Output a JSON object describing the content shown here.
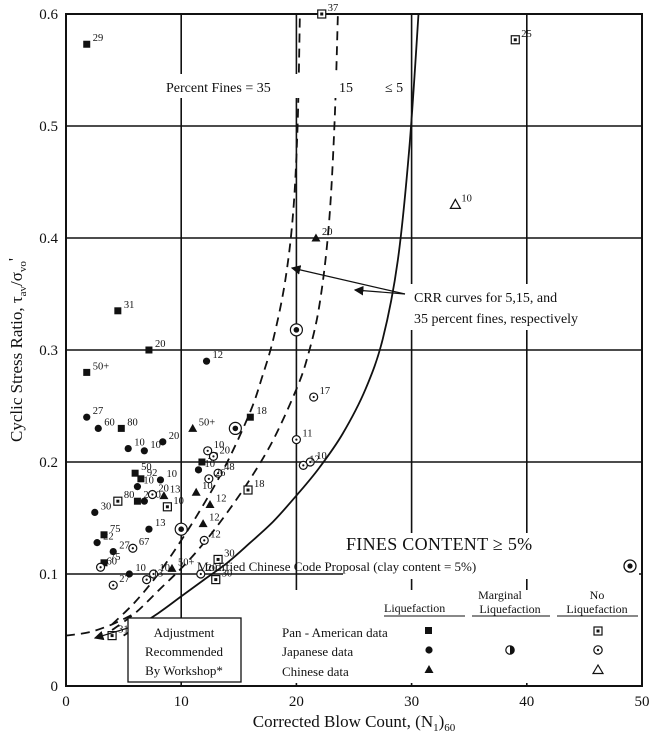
{
  "chart_data": {
    "type": "scatter",
    "title": "",
    "xlabel": "Corrected Blow Count, (N",
    "xlabel_sub1": "1",
    "xlabel_paren": ")",
    "xlabel_sub2": "60",
    "ylabel_main": "Cyclic Stress Ratio, τ",
    "ylabel_sub1": "av",
    "ylabel_slash": "/σ",
    "ylabel_sub2": "vo",
    "ylabel_prime": "'",
    "xlim": [
      0,
      50
    ],
    "ylim": [
      0,
      0.6
    ],
    "xticks": [
      "0",
      "10",
      "20",
      "30",
      "40",
      "50"
    ],
    "yticks": [
      "0",
      "0.1",
      "0.2",
      "0.3",
      "0.4",
      "0.5",
      "0.6"
    ],
    "grid": true,
    "curve_labels": {
      "prefix": "Percent Fines = 35",
      "fifteen": "15",
      "five": "≤ 5"
    },
    "crr_note_line1": "CRR curves for 5,15, and",
    "crr_note_line2": "35 percent fines, respectively",
    "fines_content": "FINES CONTENT ≥ 5%",
    "chinese_code": "Modified Chinese Code Proposal (clay content = 5%)",
    "adjustment_line1": "Adjustment",
    "adjustment_line2": "Recommended",
    "adjustment_line3": "By Workshop*",
    "legend_cols": {
      "liq": "Liquefaction",
      "marg1": "Marginal",
      "marg2": "Liquefaction",
      "noliq1": "No",
      "noliq2": "Liquefaction"
    },
    "legend_rows": [
      "Pan - American data",
      "Japanese data",
      "Chinese data"
    ],
    "curves": [
      {
        "name": "35",
        "x": [
          4,
          6,
          8,
          10,
          12,
          14,
          16,
          17,
          18,
          19,
          19.7,
          20.1,
          20.3
        ],
        "y": [
          0.055,
          0.075,
          0.1,
          0.13,
          0.163,
          0.2,
          0.245,
          0.275,
          0.31,
          0.36,
          0.42,
          0.5,
          0.6
        ]
      },
      {
        "name": "15",
        "x": [
          4,
          6,
          8,
          10,
          12,
          14,
          16,
          18,
          20,
          21,
          22,
          22.8,
          23.3,
          23.6
        ],
        "y": [
          0.05,
          0.065,
          0.085,
          0.105,
          0.128,
          0.155,
          0.185,
          0.22,
          0.265,
          0.295,
          0.34,
          0.41,
          0.5,
          0.6
        ]
      },
      {
        "name": "5",
        "x": [
          5,
          8,
          10,
          12,
          14,
          16,
          18,
          20,
          22,
          24,
          26,
          27.5,
          28.8,
          29.8,
          30.6
        ],
        "y": [
          0.045,
          0.065,
          0.08,
          0.095,
          0.11,
          0.128,
          0.147,
          0.17,
          0.195,
          0.225,
          0.265,
          0.31,
          0.38,
          0.48,
          0.6
        ]
      },
      {
        "name": "adjustment",
        "x": [
          0,
          2,
          4,
          6
        ],
        "y": [
          0.045,
          0.048,
          0.055,
          0.065
        ]
      }
    ],
    "series": [
      {
        "name": "Pan - American data",
        "status": "Liquefaction",
        "marker": "square-filled",
        "points": [
          {
            "x": 1.8,
            "y": 0.573,
            "label": "29"
          },
          {
            "x": 4.5,
            "y": 0.335,
            "label": "31"
          },
          {
            "x": 7.2,
            "y": 0.3,
            "label": "20"
          },
          {
            "x": 1.8,
            "y": 0.28,
            "label": "50+"
          },
          {
            "x": 4.8,
            "y": 0.23,
            "label": "80"
          },
          {
            "x": 16.0,
            "y": 0.24,
            "label": "18"
          },
          {
            "x": 6.0,
            "y": 0.19,
            "label": "50"
          },
          {
            "x": 6.5,
            "y": 0.185,
            "label": "92"
          },
          {
            "x": 6.2,
            "y": 0.165,
            "label": "20"
          },
          {
            "x": 3.3,
            "y": 0.135,
            "label": "75"
          },
          {
            "x": 3.3,
            "y": 0.11,
            "label": "75"
          },
          {
            "x": 11.8,
            "y": 0.2,
            "label": "20"
          }
        ]
      },
      {
        "name": "Pan - American data",
        "status": "No Liquefaction",
        "marker": "square-open",
        "points": [
          {
            "x": 22.2,
            "y": 0.6,
            "label": "37"
          },
          {
            "x": 39.0,
            "y": 0.577,
            "label": "25"
          },
          {
            "x": 4.5,
            "y": 0.165,
            "label": "80"
          },
          {
            "x": 8.8,
            "y": 0.16,
            "label": "10"
          },
          {
            "x": 15.8,
            "y": 0.175,
            "label": "18"
          },
          {
            "x": 13.2,
            "y": 0.113,
            "label": "30"
          },
          {
            "x": 13.0,
            "y": 0.095,
            "label": "30"
          },
          {
            "x": 4.0,
            "y": 0.045,
            "label": "31"
          }
        ]
      },
      {
        "name": "Japanese data",
        "status": "Liquefaction",
        "marker": "circle-filled",
        "points": [
          {
            "x": 12.2,
            "y": 0.29,
            "label": "12"
          },
          {
            "x": 1.8,
            "y": 0.24,
            "label": "27"
          },
          {
            "x": 2.8,
            "y": 0.23,
            "label": "60"
          },
          {
            "x": 8.4,
            "y": 0.218,
            "label": "20"
          },
          {
            "x": 5.4,
            "y": 0.212,
            "label": "10"
          },
          {
            "x": 6.8,
            "y": 0.21,
            "label": "10"
          },
          {
            "x": 6.2,
            "y": 0.178,
            "label": "10"
          },
          {
            "x": 8.2,
            "y": 0.184,
            "label": "10"
          },
          {
            "x": 2.5,
            "y": 0.155,
            "label": "30"
          },
          {
            "x": 2.7,
            "y": 0.128,
            "label": "22"
          },
          {
            "x": 4.1,
            "y": 0.12,
            "label": "27"
          },
          {
            "x": 7.2,
            "y": 0.14,
            "label": "13"
          },
          {
            "x": 6.8,
            "y": 0.165,
            "label": "20"
          },
          {
            "x": 11.5,
            "y": 0.193,
            "label": "10"
          },
          {
            "x": 5.5,
            "y": 0.1,
            "label": "10"
          }
        ]
      },
      {
        "name": "Japanese data",
        "status": "Marginal Liquefaction",
        "marker": "circle-half",
        "points": [
          {
            "x": 20.0,
            "y": 0.318,
            "label": ""
          },
          {
            "x": 14.7,
            "y": 0.23,
            "label": ""
          },
          {
            "x": 10.0,
            "y": 0.14,
            "label": ""
          }
        ]
      },
      {
        "name": "Japanese data",
        "status": "No Liquefaction",
        "marker": "circle-open",
        "points": [
          {
            "x": 21.5,
            "y": 0.258,
            "label": "17"
          },
          {
            "x": 20.0,
            "y": 0.22,
            "label": "11"
          },
          {
            "x": 21.2,
            "y": 0.2,
            "label": "10"
          },
          {
            "x": 20.6,
            "y": 0.197,
            "label": "12"
          },
          {
            "x": 12.3,
            "y": 0.21,
            "label": "10"
          },
          {
            "x": 12.8,
            "y": 0.205,
            "label": "20"
          },
          {
            "x": 13.2,
            "y": 0.19,
            "label": "48"
          },
          {
            "x": 12.4,
            "y": 0.185,
            "label": "26"
          },
          {
            "x": 7.5,
            "y": 0.171,
            "label": "20"
          },
          {
            "x": 12.0,
            "y": 0.13,
            "label": "12"
          },
          {
            "x": 11.7,
            "y": 0.1,
            "label": "20"
          },
          {
            "x": 5.8,
            "y": 0.123,
            "label": "67"
          },
          {
            "x": 7.6,
            "y": 0.1,
            "label": "10"
          },
          {
            "x": 7.0,
            "y": 0.095,
            "label": "13"
          },
          {
            "x": 3.0,
            "y": 0.106,
            "label": "60"
          },
          {
            "x": 4.1,
            "y": 0.09,
            "label": "27"
          }
        ]
      },
      {
        "name": "Chinese data",
        "status": "Liquefaction",
        "marker": "triangle-filled",
        "points": [
          {
            "x": 21.7,
            "y": 0.4,
            "label": "20"
          },
          {
            "x": 11.0,
            "y": 0.23,
            "label": "50+"
          },
          {
            "x": 12.5,
            "y": 0.162,
            "label": "12"
          },
          {
            "x": 11.3,
            "y": 0.173,
            "label": "10"
          },
          {
            "x": 11.9,
            "y": 0.145,
            "label": "12"
          },
          {
            "x": 8.5,
            "y": 0.17,
            "label": "13"
          },
          {
            "x": 9.2,
            "y": 0.105,
            "label": "50+"
          }
        ]
      },
      {
        "name": "Chinese data",
        "status": "No Liquefaction",
        "marker": "triangle-open",
        "points": [
          {
            "x": 33.8,
            "y": 0.43,
            "label": "10"
          }
        ]
      }
    ]
  }
}
